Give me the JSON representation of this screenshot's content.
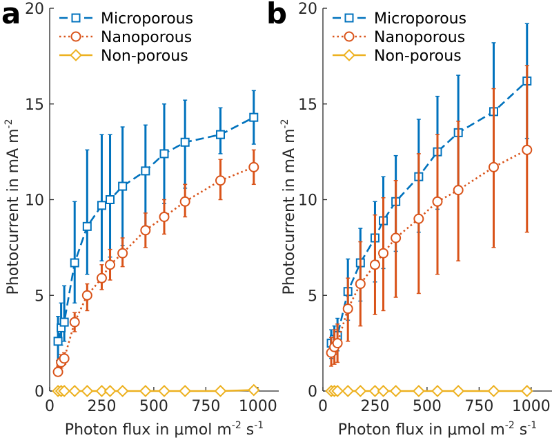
{
  "chart_data": [
    {
      "type": "line",
      "panel_label": "a",
      "xlabel": "Photon flux in μmol m",
      "xlabel_sup1": "-2",
      "xlabel_mid": " s",
      "xlabel_sup2": "-1",
      "ylabel": "Photocurrent in mA m",
      "ylabel_sup": "-2",
      "xlim": [
        0,
        1100
      ],
      "ylim": [
        0,
        20
      ],
      "xticks": [
        0,
        250,
        500,
        750,
        1000
      ],
      "yticks": [
        0,
        5,
        10,
        15,
        20
      ],
      "legend_position": "top-left",
      "series": [
        {
          "name": "Microporous",
          "color": "#0072BD",
          "marker": "square",
          "linestyle": "dashed",
          "x": [
            40,
            55,
            70,
            120,
            180,
            250,
            290,
            350,
            460,
            550,
            650,
            820,
            980
          ],
          "y": [
            2.6,
            3.3,
            3.6,
            6.7,
            8.6,
            9.7,
            10.0,
            10.7,
            11.5,
            12.4,
            13.0,
            13.4,
            14.3
          ],
          "err_low": [
            1.0,
            0.9,
            1.0,
            2.1,
            2.5,
            2.9,
            3.0,
            3.1,
            3.0,
            2.6,
            2.4,
            1.0,
            1.4
          ],
          "err_high": [
            1.3,
            1.3,
            1.9,
            3.2,
            4.0,
            3.7,
            3.4,
            3.1,
            2.4,
            2.6,
            2.2,
            1.4,
            1.4
          ]
        },
        {
          "name": "Nanoporous",
          "color": "#D95319",
          "marker": "circle",
          "linestyle": "dotted",
          "x": [
            40,
            55,
            70,
            120,
            180,
            250,
            290,
            350,
            460,
            550,
            650,
            820,
            980
          ],
          "y": [
            1.0,
            1.5,
            1.7,
            3.6,
            5.0,
            5.9,
            6.6,
            7.2,
            8.4,
            9.1,
            9.9,
            11.0,
            11.7
          ],
          "err_low": [
            0.2,
            0.3,
            0.3,
            0.5,
            0.8,
            0.6,
            0.8,
            0.7,
            0.9,
            0.9,
            0.8,
            1.0,
            0.9
          ],
          "err_high": [
            0.3,
            0.4,
            0.3,
            0.5,
            0.6,
            0.7,
            0.8,
            0.8,
            0.9,
            0.9,
            0.9,
            1.1,
            0.9
          ]
        },
        {
          "name": "Non-porous",
          "color": "#EDB120",
          "marker": "diamond",
          "linestyle": "solid",
          "x": [
            40,
            55,
            70,
            120,
            180,
            250,
            290,
            350,
            460,
            550,
            650,
            820,
            980
          ],
          "y": [
            0.0,
            0.0,
            0.0,
            0.0,
            0.0,
            0.0,
            0.0,
            0.0,
            0.0,
            0.0,
            0.0,
            0.0,
            0.05
          ],
          "err_low": [
            0,
            0,
            0,
            0,
            0,
            0,
            0,
            0,
            0,
            0,
            0,
            0,
            0
          ],
          "err_high": [
            0,
            0,
            0,
            0,
            0,
            0,
            0,
            0,
            0,
            0,
            0,
            0,
            0
          ]
        }
      ]
    },
    {
      "type": "line",
      "panel_label": "b",
      "xlabel": "Photon flux in μmol m",
      "xlabel_sup1": "-2",
      "xlabel_mid": " s",
      "xlabel_sup2": "-1",
      "ylabel": "Photocurrent in mA m",
      "ylabel_sup": "-2",
      "xlim": [
        0,
        1100
      ],
      "ylim": [
        0,
        20
      ],
      "xticks": [
        0,
        250,
        500,
        750,
        1000
      ],
      "yticks": [
        0,
        5,
        10,
        15,
        20
      ],
      "legend_position": "top-left",
      "series": [
        {
          "name": "Microporous",
          "color": "#0072BD",
          "marker": "square",
          "linestyle": "dashed",
          "x": [
            40,
            55,
            70,
            120,
            180,
            250,
            290,
            350,
            460,
            550,
            650,
            820,
            980
          ],
          "y": [
            2.5,
            2.7,
            2.9,
            5.2,
            6.7,
            8.0,
            8.9,
            9.9,
            11.2,
            12.5,
            13.5,
            14.6,
            16.2
          ],
          "err_low": [
            0.8,
            0.8,
            0.8,
            1.5,
            2.0,
            2.3,
            2.5,
            2.6,
            2.9,
            3.0,
            3.0,
            3.0,
            3.0
          ],
          "err_high": [
            0.7,
            0.7,
            0.9,
            1.7,
            1.8,
            1.9,
            2.3,
            2.4,
            3.0,
            2.9,
            3.0,
            3.6,
            3.0
          ]
        },
        {
          "name": "Nanoporous",
          "color": "#D95319",
          "marker": "circle",
          "linestyle": "dotted",
          "x": [
            40,
            55,
            70,
            120,
            180,
            250,
            290,
            350,
            460,
            550,
            650,
            820,
            980
          ],
          "y": [
            2.0,
            2.3,
            2.5,
            4.3,
            5.6,
            6.6,
            7.2,
            8.0,
            9.0,
            9.9,
            10.5,
            11.7,
            12.6
          ],
          "err_low": [
            0.7,
            0.9,
            1.0,
            1.7,
            2.2,
            2.6,
            3.0,
            3.1,
            3.9,
            3.8,
            3.7,
            4.2,
            4.3
          ],
          "err_high": [
            0.8,
            0.9,
            1.0,
            1.6,
            2.2,
            2.6,
            2.9,
            3.0,
            3.4,
            3.5,
            3.6,
            4.1,
            4.4
          ]
        },
        {
          "name": "Non-porous",
          "color": "#EDB120",
          "marker": "diamond",
          "linestyle": "solid",
          "x": [
            40,
            55,
            70,
            120,
            180,
            250,
            290,
            350,
            460,
            550,
            650,
            820,
            980
          ],
          "y": [
            0.0,
            0.0,
            0.0,
            0.0,
            0.0,
            0.0,
            0.0,
            0.0,
            0.0,
            0.0,
            0.0,
            0.0,
            0.0
          ],
          "err_low": [
            0,
            0,
            0,
            0,
            0,
            0,
            0,
            0,
            0,
            0,
            0,
            0,
            0
          ],
          "err_high": [
            0,
            0,
            0,
            0,
            0,
            0,
            0,
            0,
            0,
            0,
            0,
            0,
            0
          ]
        }
      ]
    }
  ]
}
